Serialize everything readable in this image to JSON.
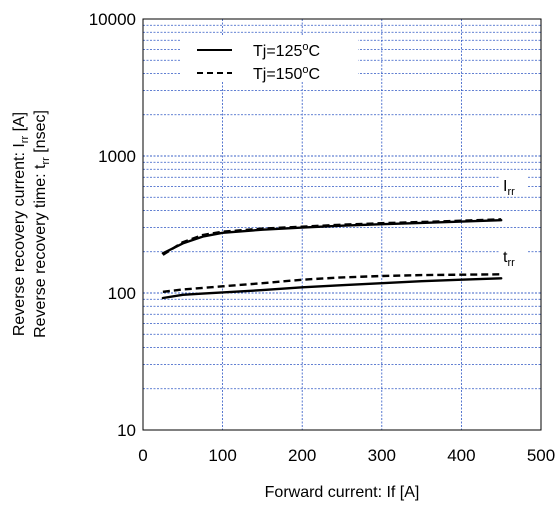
{
  "chart_data": {
    "type": "line",
    "title": "",
    "xlabel": "Forward current: If [A]",
    "ylabel_lines": [
      {
        "main": "Reverse recovery current: I",
        "sub": "rr",
        "unit": " [A]"
      },
      {
        "main": "Reverse recovery time: t",
        "sub": "rr",
        "unit": " [nsec]"
      }
    ],
    "xlim": [
      0,
      500
    ],
    "ylim": [
      10,
      10000
    ],
    "yscale": "log",
    "x_ticks": [
      "0",
      "100",
      "200",
      "300",
      "400",
      "500"
    ],
    "x_tick_values": [
      0,
      100,
      200,
      300,
      400,
      500
    ],
    "y_ticks": [
      "10",
      "100",
      "1000",
      "10000"
    ],
    "y_tick_values": [
      10,
      100,
      1000,
      10000
    ],
    "grid": true,
    "legend": {
      "placement": "top-left",
      "entries": [
        {
          "main": "Tj=125",
          "sup": "o",
          "unit": "C",
          "style": "solid"
        },
        {
          "main": "Tj=150",
          "sup": "o",
          "unit": "C",
          "style": "dashed"
        }
      ]
    },
    "annotations": [
      {
        "main": "I",
        "sub": "rr",
        "x": 455,
        "y": 470
      },
      {
        "main": "t",
        "sub": "rr",
        "x": 455,
        "y": 165
      }
    ],
    "series": [
      {
        "name": "Tj=125oC",
        "quantity": "Irr",
        "style": "solid",
        "x": [
          25,
          50,
          75,
          100,
          150,
          200,
          250,
          300,
          350,
          400,
          450
        ],
        "y": [
          195,
          230,
          258,
          275,
          290,
          300,
          310,
          318,
          325,
          332,
          340
        ]
      },
      {
        "name": "Tj=150oC",
        "quantity": "Irr",
        "style": "dashed",
        "x": [
          25,
          50,
          75,
          100,
          150,
          200,
          250,
          300,
          350,
          400,
          450
        ],
        "y": [
          190,
          235,
          265,
          280,
          295,
          305,
          315,
          323,
          330,
          337,
          345
        ]
      },
      {
        "name": "Tj=125oC",
        "quantity": "trr",
        "style": "solid",
        "x": [
          25,
          50,
          75,
          100,
          150,
          200,
          250,
          300,
          350,
          400,
          450
        ],
        "y": [
          92,
          97,
          99,
          101,
          105,
          110,
          114,
          118,
          122,
          125,
          128
        ]
      },
      {
        "name": "Tj=150oC",
        "quantity": "trr",
        "style": "dashed",
        "x": [
          25,
          50,
          75,
          100,
          150,
          200,
          250,
          300,
          350,
          400,
          450
        ],
        "y": [
          102,
          106,
          109,
          112,
          118,
          125,
          130,
          133,
          135,
          136,
          137
        ]
      }
    ]
  }
}
